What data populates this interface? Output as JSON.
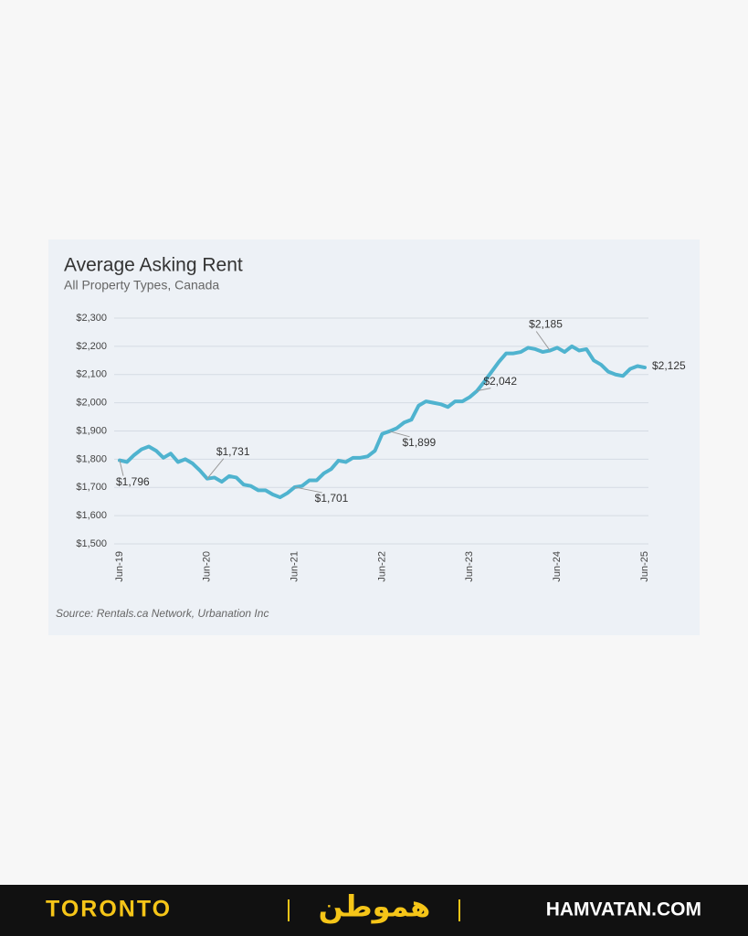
{
  "chart_data": {
    "type": "line",
    "title": "Average Asking Rent",
    "subtitle": "All Property Types, Canada",
    "source": "Source: Rentals.ca Network, Urbanation Inc",
    "categories": [
      "Jun-19",
      null,
      null,
      null,
      null,
      null,
      null,
      null,
      null,
      null,
      null,
      null,
      "Jun-20",
      null,
      null,
      null,
      null,
      null,
      null,
      null,
      null,
      null,
      null,
      null,
      "Jun-21",
      null,
      null,
      null,
      null,
      null,
      null,
      null,
      null,
      null,
      null,
      null,
      "Jun-22",
      null,
      null,
      null,
      null,
      null,
      null,
      null,
      null,
      null,
      null,
      null,
      "Jun-23",
      null,
      null,
      null,
      null,
      null,
      null,
      null,
      null,
      null,
      null,
      null,
      "Jun-24",
      null,
      null,
      null,
      null,
      null,
      null,
      null,
      null,
      null,
      null,
      null,
      "Jun-25"
    ],
    "values": [
      1796,
      1790,
      1815,
      1835,
      1845,
      1830,
      1805,
      1820,
      1790,
      1800,
      1785,
      1760,
      1731,
      1735,
      1720,
      1740,
      1735,
      1710,
      1705,
      1690,
      1690,
      1675,
      1665,
      1680,
      1701,
      1705,
      1725,
      1725,
      1750,
      1765,
      1795,
      1790,
      1805,
      1805,
      1810,
      1830,
      1890,
      1899,
      1910,
      1930,
      1940,
      1990,
      2005,
      2000,
      1995,
      1985,
      2005,
      2005,
      2020,
      2042,
      2075,
      2110,
      2145,
      2175,
      2175,
      2180,
      2195,
      2190,
      2180,
      2185,
      2195,
      2180,
      2200,
      2185,
      2190,
      2150,
      2135,
      2110,
      2100,
      2095,
      2120,
      2130,
      2125
    ],
    "value_labels": [
      "$1,796",
      null,
      null,
      null,
      null,
      null,
      null,
      null,
      null,
      null,
      null,
      null,
      "$1,731",
      null,
      null,
      null,
      null,
      null,
      null,
      null,
      null,
      null,
      null,
      null,
      "$1,701",
      null,
      null,
      null,
      null,
      null,
      null,
      null,
      null,
      null,
      null,
      null,
      null,
      "$1,899",
      null,
      null,
      null,
      null,
      null,
      null,
      null,
      null,
      null,
      null,
      null,
      "$2,042",
      null,
      null,
      null,
      null,
      null,
      null,
      null,
      null,
      null,
      "$2,185",
      null,
      null,
      null,
      null,
      null,
      null,
      null,
      null,
      null,
      null,
      null,
      null,
      "$2,125"
    ],
    "color": "#4fb3cf",
    "ylim": [
      1500,
      2300
    ],
    "yticks": [
      {
        "value": 1500,
        "label": "$1,500"
      },
      {
        "value": 1600,
        "label": "$1,600"
      },
      {
        "value": 1700,
        "label": "$1,700"
      },
      {
        "value": 1800,
        "label": "$1,800"
      },
      {
        "value": 1900,
        "label": "$1,900"
      },
      {
        "value": 2000,
        "label": "$2,000"
      },
      {
        "value": 2100,
        "label": "$2,100"
      },
      {
        "value": 2200,
        "label": "$2,200"
      },
      {
        "value": 2300,
        "label": "$2,300"
      }
    ],
    "grid": true
  },
  "footer": {
    "city": "TORONTO",
    "logo": "هموطن",
    "site": "HAMVATAN.COM"
  }
}
